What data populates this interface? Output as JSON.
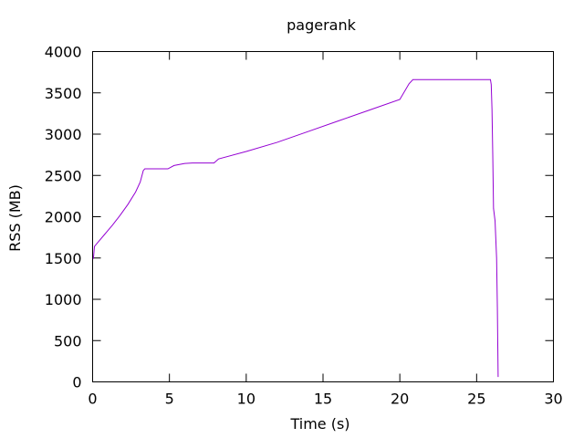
{
  "chart_data": {
    "type": "line",
    "title": "pagerank",
    "xlabel": "Time (s)",
    "ylabel": "RSS (MB)",
    "xlim": [
      0,
      30
    ],
    "ylim": [
      0,
      4000
    ],
    "xticks": [
      0,
      5,
      10,
      15,
      20,
      25,
      30
    ],
    "yticks": [
      0,
      500,
      1000,
      1500,
      2000,
      2500,
      3000,
      3500,
      4000
    ],
    "grid": false,
    "legend": false,
    "series": [
      {
        "color": "#9400d3",
        "points": [
          [
            0.05,
            1490
          ],
          [
            0.12,
            1640
          ],
          [
            0.3,
            1680
          ],
          [
            0.8,
            1790
          ],
          [
            1.3,
            1900
          ],
          [
            1.8,
            2020
          ],
          [
            2.3,
            2150
          ],
          [
            2.8,
            2300
          ],
          [
            3.1,
            2420
          ],
          [
            3.3,
            2560
          ],
          [
            3.4,
            2580
          ],
          [
            4.9,
            2580
          ],
          [
            5.3,
            2620
          ],
          [
            6.0,
            2645
          ],
          [
            6.5,
            2650
          ],
          [
            7.9,
            2650
          ],
          [
            8.2,
            2700
          ],
          [
            10.0,
            2790
          ],
          [
            12.0,
            2900
          ],
          [
            14.0,
            3030
          ],
          [
            16.0,
            3160
          ],
          [
            18.0,
            3290
          ],
          [
            20.0,
            3420
          ],
          [
            20.6,
            3610
          ],
          [
            20.85,
            3660
          ],
          [
            25.9,
            3660
          ],
          [
            25.95,
            3600
          ],
          [
            26.0,
            3300
          ],
          [
            26.05,
            2750
          ],
          [
            26.1,
            2100
          ],
          [
            26.2,
            1950
          ],
          [
            26.3,
            1500
          ],
          [
            26.35,
            900
          ],
          [
            26.4,
            60
          ]
        ]
      }
    ]
  }
}
